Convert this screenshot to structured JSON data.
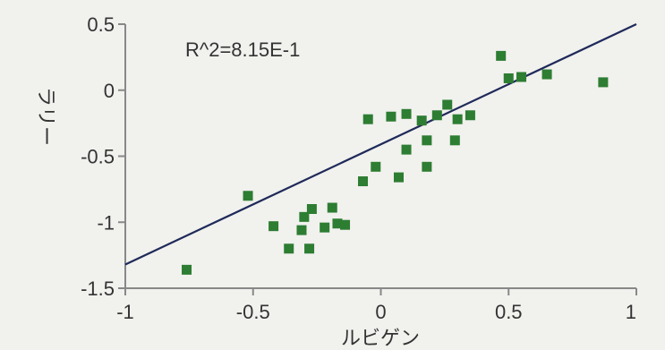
{
  "chart_data": {
    "type": "scatter",
    "title": "",
    "xlabel": "ルビゲン",
    "ylabel": "ラリー",
    "xlim": [
      -1,
      1
    ],
    "ylim": [
      -1.5,
      0.5
    ],
    "x_ticks": [
      "-1",
      "-0.5",
      "0",
      "0.5",
      "1"
    ],
    "y_ticks": [
      "0.5",
      "0",
      "-0.5",
      "-1",
      "-1.5"
    ],
    "annotation": "R^2=8.15E-1",
    "grid": false,
    "marker_color": "#2d7d32",
    "line_color": "#1f2a5a",
    "points": [
      {
        "x": -0.76,
        "y": -1.36
      },
      {
        "x": -0.52,
        "y": -0.8
      },
      {
        "x": -0.42,
        "y": -1.03
      },
      {
        "x": -0.36,
        "y": -1.2
      },
      {
        "x": -0.31,
        "y": -1.06
      },
      {
        "x": -0.3,
        "y": -0.96
      },
      {
        "x": -0.28,
        "y": -1.2
      },
      {
        "x": -0.27,
        "y": -0.9
      },
      {
        "x": -0.22,
        "y": -1.04
      },
      {
        "x": -0.19,
        "y": -0.89
      },
      {
        "x": -0.17,
        "y": -1.01
      },
      {
        "x": -0.14,
        "y": -1.02
      },
      {
        "x": -0.07,
        "y": -0.69
      },
      {
        "x": -0.05,
        "y": -0.22
      },
      {
        "x": -0.02,
        "y": -0.58
      },
      {
        "x": 0.04,
        "y": -0.2
      },
      {
        "x": 0.07,
        "y": -0.66
      },
      {
        "x": 0.1,
        "y": -0.18
      },
      {
        "x": 0.1,
        "y": -0.45
      },
      {
        "x": 0.16,
        "y": -0.23
      },
      {
        "x": 0.18,
        "y": -0.38
      },
      {
        "x": 0.18,
        "y": -0.58
      },
      {
        "x": 0.22,
        "y": -0.19
      },
      {
        "x": 0.26,
        "y": -0.11
      },
      {
        "x": 0.29,
        "y": -0.38
      },
      {
        "x": 0.3,
        "y": -0.22
      },
      {
        "x": 0.35,
        "y": -0.19
      },
      {
        "x": 0.47,
        "y": 0.26
      },
      {
        "x": 0.5,
        "y": 0.09
      },
      {
        "x": 0.55,
        "y": 0.1
      },
      {
        "x": 0.65,
        "y": 0.12
      },
      {
        "x": 0.87,
        "y": 0.06
      }
    ],
    "fit_line": {
      "slope": 0.91,
      "intercept": -0.41
    }
  }
}
